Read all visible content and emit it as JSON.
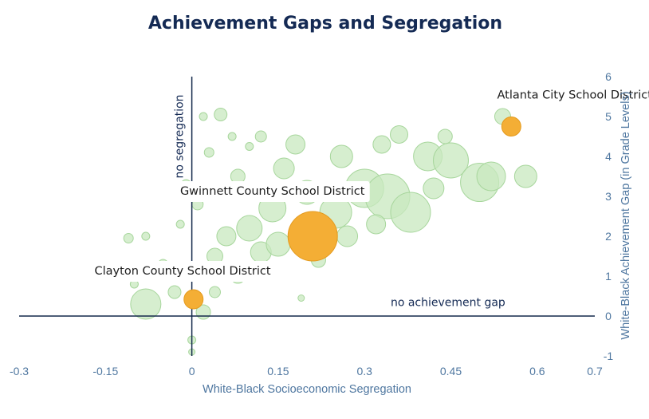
{
  "chart_data": {
    "type": "scatter",
    "title": "Achievement Gaps and Segregation",
    "xlabel": "White-Black Socioeconomic Segregation",
    "ylabel": "White-Black Achievement Gap (in Grade Levels)",
    "xlim": [
      -0.3,
      0.7
    ],
    "ylim": [
      -1,
      6
    ],
    "xticks": [
      -0.3,
      -0.15,
      0,
      0.15,
      0.3,
      0.45,
      0.6,
      0.7
    ],
    "xtick_labels": [
      "-0.3",
      "-0.15",
      "0",
      "0.15",
      "0.3",
      "0.45",
      "0.6",
      "0.7"
    ],
    "yticks": [
      -1,
      0,
      1,
      2,
      3,
      4,
      5,
      6
    ],
    "ytick_labels": [
      "-1",
      "0",
      "1",
      "2",
      "3",
      "4",
      "5",
      "6"
    ],
    "reference_lines": {
      "vertical": {
        "x": 0,
        "label": "no segregation"
      },
      "horizontal": {
        "y": 0,
        "label": "no achievement gap"
      }
    },
    "highlighted": [
      {
        "name": "Atlanta City School District",
        "x": 0.555,
        "y": 4.75,
        "size": 12
      },
      {
        "name": "Gwinnett County School District",
        "x": 0.21,
        "y": 2.0,
        "size": 31
      },
      {
        "name": "Clayton County School District",
        "x": 0.003,
        "y": 0.42,
        "size": 12
      }
    ],
    "background_points": [
      {
        "x": 0.05,
        "y": 5.05,
        "r": 8
      },
      {
        "x": 0.02,
        "y": 5.0,
        "r": 5
      },
      {
        "x": 0.12,
        "y": 4.5,
        "r": 7
      },
      {
        "x": 0.18,
        "y": 4.3,
        "r": 12
      },
      {
        "x": 0.26,
        "y": 4.0,
        "r": 14
      },
      {
        "x": 0.33,
        "y": 4.3,
        "r": 11
      },
      {
        "x": 0.36,
        "y": 4.55,
        "r": 11
      },
      {
        "x": 0.41,
        "y": 4.0,
        "r": 18
      },
      {
        "x": 0.45,
        "y": 3.9,
        "r": 22
      },
      {
        "x": 0.5,
        "y": 3.35,
        "r": 24
      },
      {
        "x": 0.52,
        "y": 3.5,
        "r": 18
      },
      {
        "x": 0.3,
        "y": 3.2,
        "r": 24
      },
      {
        "x": 0.34,
        "y": 3.0,
        "r": 28
      },
      {
        "x": 0.38,
        "y": 2.6,
        "r": 25
      },
      {
        "x": 0.25,
        "y": 2.6,
        "r": 20
      },
      {
        "x": 0.14,
        "y": 2.7,
        "r": 17
      },
      {
        "x": 0.2,
        "y": 3.1,
        "r": 15
      },
      {
        "x": 0.08,
        "y": 3.5,
        "r": 9
      },
      {
        "x": 0.16,
        "y": 3.7,
        "r": 13
      },
      {
        "x": 0.1,
        "y": 2.2,
        "r": 16
      },
      {
        "x": 0.06,
        "y": 2.0,
        "r": 12
      },
      {
        "x": 0.04,
        "y": 1.5,
        "r": 10
      },
      {
        "x": 0.08,
        "y": 1.0,
        "r": 9
      },
      {
        "x": 0.12,
        "y": 1.6,
        "r": 13
      },
      {
        "x": 0.15,
        "y": 1.8,
        "r": 15
      },
      {
        "x": 0.01,
        "y": 2.8,
        "r": 7
      },
      {
        "x": -0.01,
        "y": 3.3,
        "r": 6
      },
      {
        "x": 0.03,
        "y": 4.1,
        "r": 6
      },
      {
        "x": -0.05,
        "y": 1.3,
        "r": 6
      },
      {
        "x": -0.08,
        "y": 0.3,
        "r": 19
      },
      {
        "x": -0.03,
        "y": 0.6,
        "r": 8
      },
      {
        "x": -0.1,
        "y": 0.8,
        "r": 5
      },
      {
        "x": 0.02,
        "y": 0.1,
        "r": 9
      },
      {
        "x": 0.04,
        "y": 0.6,
        "r": 7
      },
      {
        "x": 0.19,
        "y": 0.45,
        "r": 4
      },
      {
        "x": 0.13,
        "y": 1.2,
        "r": 7
      },
      {
        "x": 0.22,
        "y": 1.4,
        "r": 9
      },
      {
        "x": 0.27,
        "y": 2.0,
        "r": 13
      },
      {
        "x": 0.32,
        "y": 2.3,
        "r": 12
      },
      {
        "x": 0.42,
        "y": 3.2,
        "r": 13
      },
      {
        "x": 0.44,
        "y": 4.5,
        "r": 9
      },
      {
        "x": 0.54,
        "y": 5.0,
        "r": 10
      },
      {
        "x": 0.58,
        "y": 3.5,
        "r": 14
      },
      {
        "x": 0.0,
        "y": -0.6,
        "r": 5
      },
      {
        "x": 0.0,
        "y": -0.9,
        "r": 4
      },
      {
        "x": -0.02,
        "y": 2.3,
        "r": 5
      },
      {
        "x": 0.07,
        "y": 4.5,
        "r": 5
      },
      {
        "x": 0.1,
        "y": 4.25,
        "r": 5
      },
      {
        "x": -0.11,
        "y": 1.95,
        "r": 6
      },
      {
        "x": -0.08,
        "y": 2.0,
        "r": 5
      }
    ],
    "colors": {
      "bubble_fill": "#c8e8bf",
      "bubble_stroke": "#a7d69c",
      "highlight_fill": "#f4ae35",
      "highlight_stroke": "#e49a1d",
      "reference_line": "#13294b",
      "title": "#142a54",
      "axis_text": "#4f77a0",
      "label_bg": "#ffffff"
    }
  }
}
